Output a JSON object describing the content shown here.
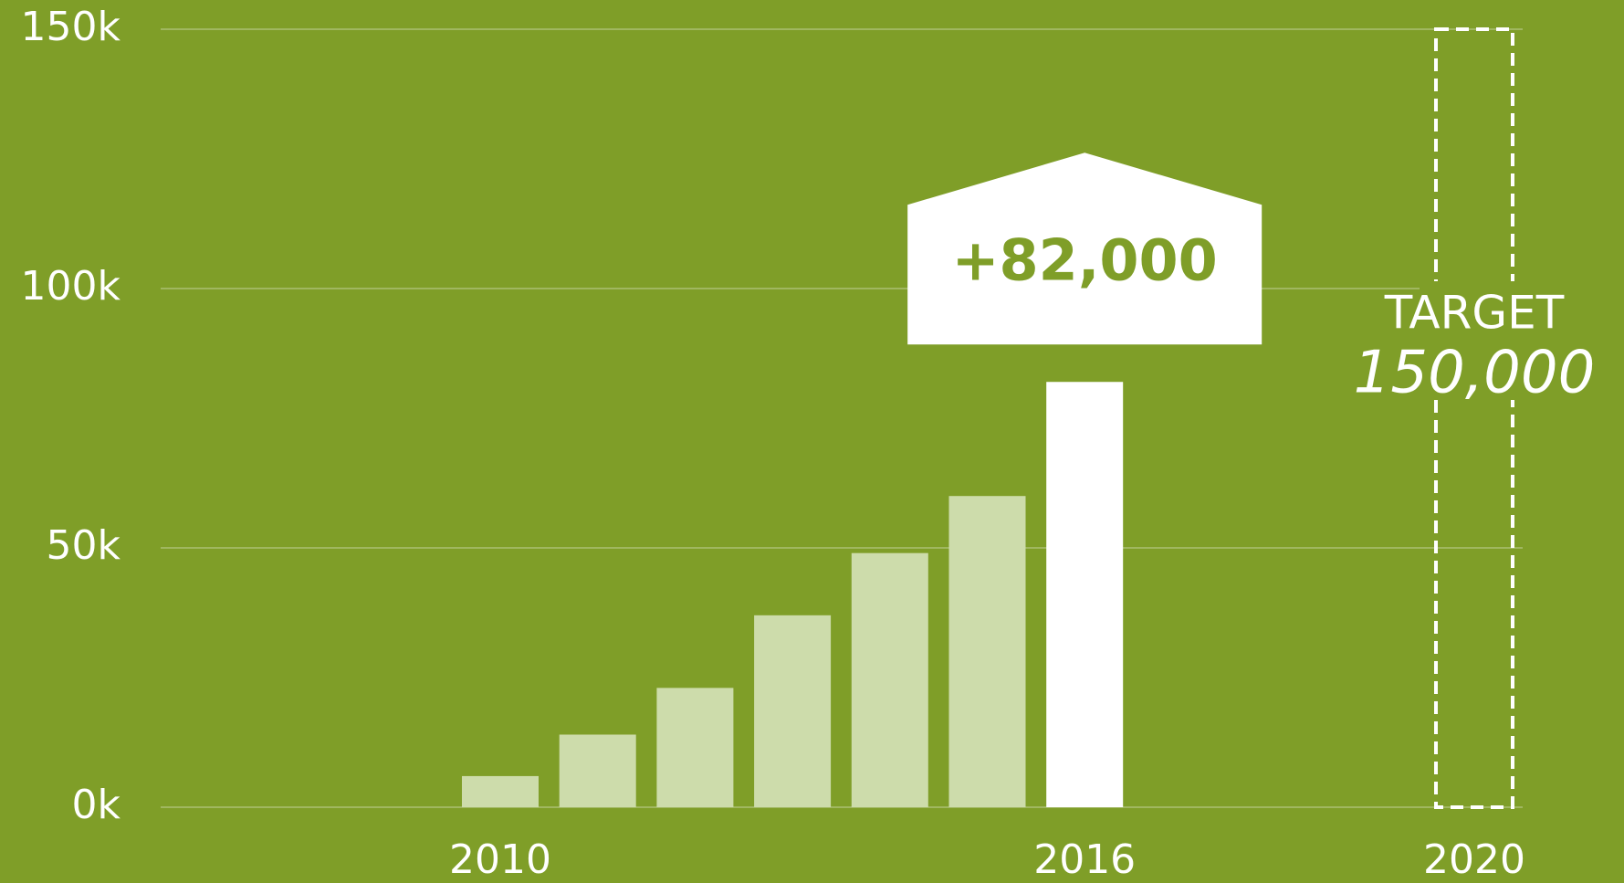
{
  "chart_data": {
    "type": "bar",
    "categories": [
      "2010",
      null,
      null,
      null,
      null,
      null,
      "2016",
      null,
      null,
      null,
      "2020"
    ],
    "values": [
      6000,
      14000,
      23000,
      37000,
      49000,
      60000,
      82000,
      null,
      null,
      null,
      150000
    ],
    "value_labels": [
      null,
      null,
      null,
      null,
      null,
      null,
      "+82,000",
      null,
      null,
      null,
      "150,000"
    ],
    "colors": [
      "#cddcab",
      "#cddcab",
      "#cddcab",
      "#cddcab",
      "#cddcab",
      "#cddcab",
      "#ffffff",
      null,
      null,
      null,
      "#ffffff"
    ],
    "styles": [
      "solid",
      "solid",
      "solid",
      "solid",
      "solid",
      "solid",
      "callout",
      null,
      null,
      null,
      "dashed"
    ],
    "target_label": "TARGET",
    "background": "#7f9e28",
    "ylim": [
      0,
      150000
    ],
    "yticks": [
      {
        "value": 0,
        "label": "0k"
      },
      {
        "value": 50000,
        "label": "50k"
      },
      {
        "value": 100000,
        "label": "100k"
      },
      {
        "value": 150000,
        "label": "150k"
      }
    ],
    "grid": true
  }
}
